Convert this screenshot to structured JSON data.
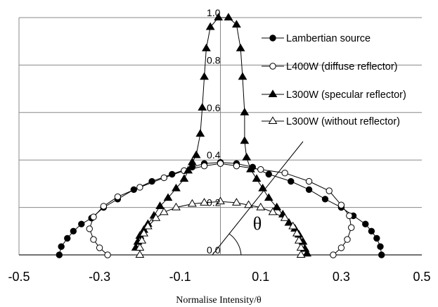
{
  "chart_data": {
    "type": "scatter",
    "title": "",
    "xlabel": "Normalise Intensity/θ",
    "ylabel": "",
    "xlim": [
      -0.5,
      0.5
    ],
    "ylim": [
      0,
      1.0
    ],
    "x_ticks": [
      "-0.5",
      "-0.3",
      "-0.1",
      "0.1",
      "0.3",
      "0.5"
    ],
    "y_ticks": [
      "0.0",
      "0.2",
      "0.4",
      "0.6",
      "0.8",
      "1.0"
    ],
    "grid": "horizontal",
    "legend_position": "top-right",
    "annotation": "θ",
    "series": [
      {
        "name": "Lambertian source",
        "marker": "filled-circle",
        "points": [
          [
            -0.4,
            0.0
          ],
          [
            -0.395,
            0.035
          ],
          [
            -0.38,
            0.07
          ],
          [
            -0.365,
            0.1
          ],
          [
            -0.345,
            0.13
          ],
          [
            -0.32,
            0.155
          ],
          [
            -0.29,
            0.2
          ],
          [
            -0.255,
            0.235
          ],
          [
            -0.215,
            0.275
          ],
          [
            -0.17,
            0.31
          ],
          [
            -0.12,
            0.34
          ],
          [
            -0.07,
            0.37
          ],
          [
            -0.04,
            0.385
          ],
          [
            0.0,
            0.39
          ],
          [
            0.04,
            0.385
          ],
          [
            0.08,
            0.37
          ],
          [
            0.12,
            0.34
          ],
          [
            0.175,
            0.31
          ],
          [
            0.22,
            0.275
          ],
          [
            0.26,
            0.235
          ],
          [
            0.3,
            0.2
          ],
          [
            0.33,
            0.165
          ],
          [
            0.36,
            0.13
          ],
          [
            0.375,
            0.1
          ],
          [
            0.388,
            0.07
          ],
          [
            0.397,
            0.035
          ],
          [
            0.4,
            0.0
          ]
        ]
      },
      {
        "name": "L400W (diffuse reflector)",
        "marker": "open-circle",
        "points": [
          [
            -0.28,
            0.0
          ],
          [
            -0.3,
            0.03
          ],
          [
            -0.315,
            0.065
          ],
          [
            -0.325,
            0.11
          ],
          [
            -0.315,
            0.16
          ],
          [
            -0.29,
            0.205
          ],
          [
            -0.255,
            0.245
          ],
          [
            -0.2,
            0.285
          ],
          [
            -0.14,
            0.325
          ],
          [
            -0.09,
            0.355
          ],
          [
            -0.04,
            0.375
          ],
          [
            0.0,
            0.385
          ],
          [
            0.04,
            0.375
          ],
          [
            0.1,
            0.36
          ],
          [
            0.16,
            0.345
          ],
          [
            0.22,
            0.31
          ],
          [
            0.27,
            0.27
          ],
          [
            0.3,
            0.21
          ],
          [
            0.32,
            0.165
          ],
          [
            0.325,
            0.115
          ],
          [
            0.315,
            0.065
          ],
          [
            0.3,
            0.03
          ],
          [
            0.28,
            0.0
          ]
        ]
      },
      {
        "name": "L300W (specular reflector)",
        "marker": "filled-triangle",
        "points": [
          [
            -0.21,
            0.03
          ],
          [
            -0.205,
            0.055
          ],
          [
            -0.2,
            0.08
          ],
          [
            -0.19,
            0.105
          ],
          [
            -0.18,
            0.13
          ],
          [
            -0.165,
            0.165
          ],
          [
            -0.15,
            0.205
          ],
          [
            -0.13,
            0.24
          ],
          [
            -0.11,
            0.28
          ],
          [
            -0.09,
            0.32
          ],
          [
            -0.08,
            0.355
          ],
          [
            -0.07,
            0.39
          ],
          [
            -0.06,
            0.42
          ],
          [
            -0.05,
            0.51
          ],
          [
            -0.045,
            0.62
          ],
          [
            -0.04,
            0.75
          ],
          [
            -0.035,
            0.87
          ],
          [
            -0.025,
            0.96
          ],
          [
            -0.005,
            1.0
          ],
          [
            0.02,
            1.0
          ],
          [
            0.04,
            0.97
          ],
          [
            0.05,
            0.87
          ],
          [
            0.055,
            0.75
          ],
          [
            0.06,
            0.6
          ],
          [
            0.06,
            0.48
          ],
          [
            0.065,
            0.41
          ],
          [
            0.075,
            0.36
          ],
          [
            0.09,
            0.32
          ],
          [
            0.105,
            0.28
          ],
          [
            0.12,
            0.24
          ],
          [
            0.14,
            0.2
          ],
          [
            0.155,
            0.17
          ],
          [
            0.17,
            0.135
          ],
          [
            0.185,
            0.11
          ],
          [
            0.195,
            0.085
          ],
          [
            0.205,
            0.055
          ],
          [
            0.21,
            0.025
          ],
          [
            0.215,
            0.005
          ]
        ]
      },
      {
        "name": "L300W (without reflector)",
        "marker": "open-triangle",
        "points": [
          [
            -0.2,
            0.0
          ],
          [
            -0.2,
            0.03
          ],
          [
            -0.195,
            0.06
          ],
          [
            -0.19,
            0.09
          ],
          [
            -0.18,
            0.12
          ],
          [
            -0.16,
            0.155
          ],
          [
            -0.14,
            0.18
          ],
          [
            -0.11,
            0.2
          ],
          [
            -0.07,
            0.215
          ],
          [
            -0.04,
            0.22
          ],
          [
            0.0,
            0.225
          ],
          [
            0.04,
            0.22
          ],
          [
            0.07,
            0.21
          ],
          [
            0.1,
            0.2
          ],
          [
            0.13,
            0.18
          ],
          [
            0.16,
            0.155
          ],
          [
            0.18,
            0.12
          ],
          [
            0.19,
            0.09
          ],
          [
            0.195,
            0.06
          ],
          [
            0.2,
            0.03
          ],
          [
            0.2,
            0.0
          ]
        ]
      }
    ]
  }
}
